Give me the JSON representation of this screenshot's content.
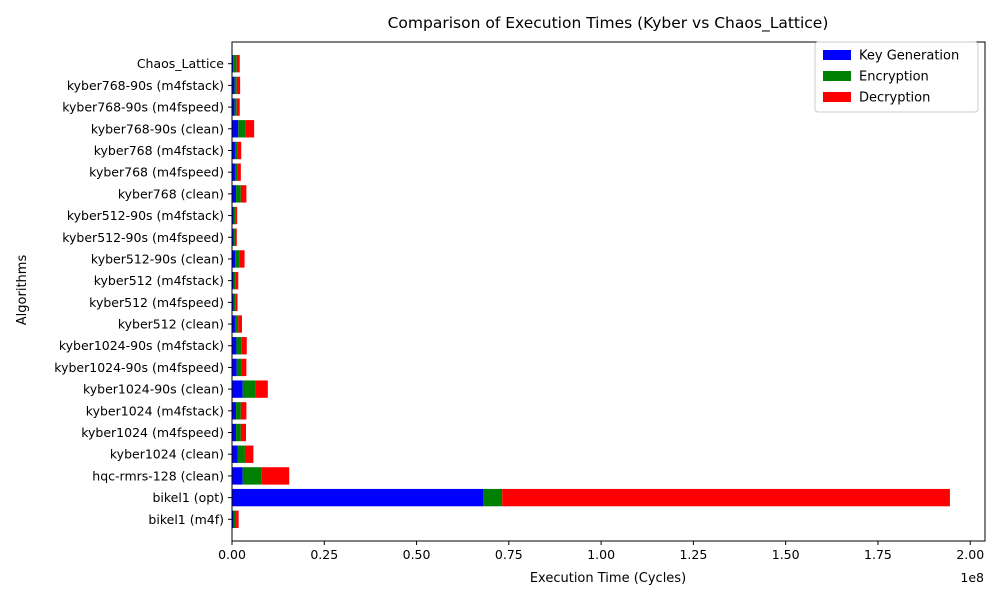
{
  "chart_data": {
    "type": "bar",
    "orientation": "horizontal",
    "stacked": true,
    "title": "Comparison of Execution Times (Kyber vs Chaos_Lattice)",
    "xlabel": "Execution Time (Cycles)",
    "ylabel": "Algorithms",
    "x_scale_label": "1e8",
    "xlim": [
      0,
      204000000
    ],
    "x_ticks": [
      0,
      25000000,
      50000000,
      75000000,
      100000000,
      125000000,
      150000000,
      175000000,
      200000000
    ],
    "x_tick_labels": [
      "0.00",
      "0.25",
      "0.50",
      "0.75",
      "1.00",
      "1.25",
      "1.50",
      "1.75",
      "2.00"
    ],
    "grid": false,
    "legend_position": "upper right",
    "categories": [
      "bikel1 (m4f)",
      "bikel1 (opt)",
      "hqc-rmrs-128 (clean)",
      "kyber1024 (clean)",
      "kyber1024 (m4fspeed)",
      "kyber1024 (m4fstack)",
      "kyber1024-90s (clean)",
      "kyber1024-90s (m4fspeed)",
      "kyber1024-90s (m4fstack)",
      "kyber512 (clean)",
      "kyber512 (m4fspeed)",
      "kyber512 (m4fstack)",
      "kyber512-90s (clean)",
      "kyber512-90s (m4fspeed)",
      "kyber512-90s (m4fstack)",
      "kyber768 (clean)",
      "kyber768 (m4fspeed)",
      "kyber768 (m4fstack)",
      "kyber768-90s (clean)",
      "kyber768-90s (m4fspeed)",
      "kyber768-90s (m4fstack)",
      "Chaos_Lattice"
    ],
    "series": [
      {
        "name": "Key Generation",
        "color": "#0000ff",
        "values": [
          400000,
          68000000,
          2900000,
          1500000,
          1100000,
          1100000,
          2900000,
          1300000,
          1200000,
          800000,
          500000,
          500000,
          900000,
          500000,
          500000,
          1100000,
          800000,
          800000,
          1700000,
          700000,
          700000,
          300000
        ]
      },
      {
        "name": "Encryption",
        "color": "#008000",
        "values": [
          700000,
          5200000,
          5000000,
          2000000,
          1300000,
          1300000,
          3500000,
          1300000,
          1300000,
          900000,
          400000,
          500000,
          1100000,
          300000,
          400000,
          1300000,
          800000,
          800000,
          2000000,
          600000,
          600000,
          1000000
        ]
      },
      {
        "name": "Decryption",
        "color": "#ff0000",
        "values": [
          700000,
          121300000,
          7600000,
          2300000,
          1400000,
          1500000,
          3300000,
          1300000,
          1500000,
          1000000,
          600000,
          700000,
          1400000,
          500000,
          500000,
          1500000,
          800000,
          900000,
          2300000,
          800000,
          900000,
          800000
        ]
      }
    ]
  }
}
